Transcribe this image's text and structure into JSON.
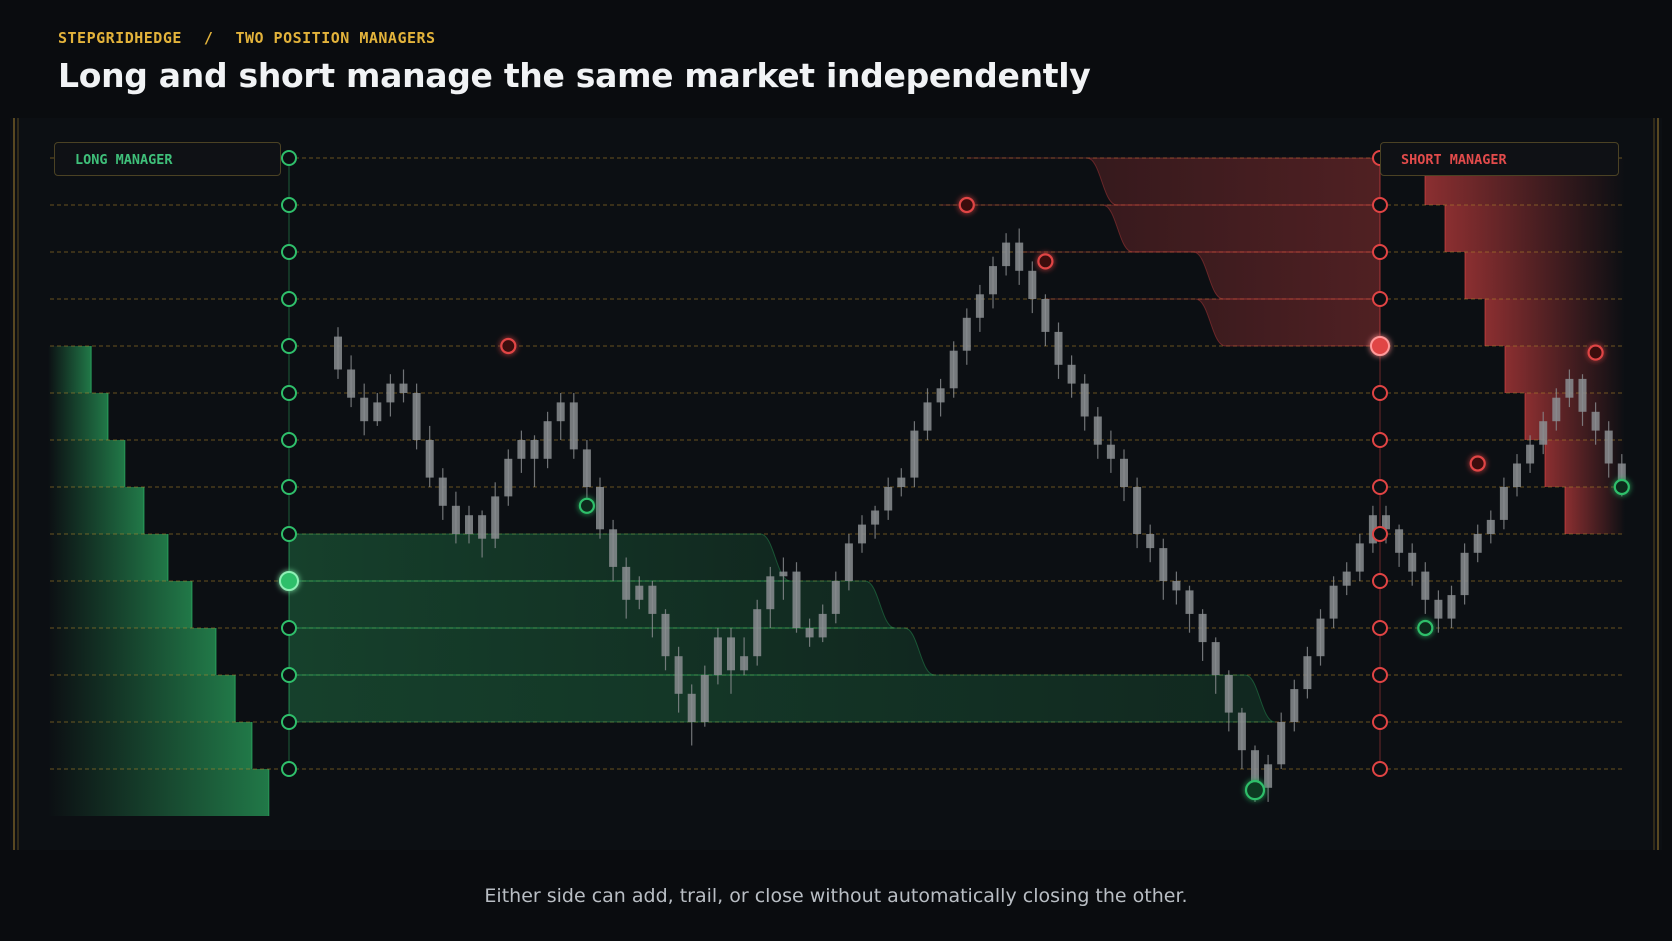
{
  "header": {
    "breadcrumb": [
      "STEPGRIDHEDGE",
      "/",
      "TWO POSITION MANAGERS"
    ],
    "title": "Long and short manage the same market independently"
  },
  "managers": {
    "long": {
      "label": "LONG MANAGER",
      "color": "#2fbf6b"
    },
    "short": {
      "label": "SHORT MANAGER",
      "color": "#e04444"
    }
  },
  "caption": "Either side can add, trail, or close without automatically closing the other.",
  "colors": {
    "background": "#0a0c0f",
    "accent": "#e3b33b",
    "gridline": "#b58a2a",
    "candle": "#8a8d90",
    "long": "#2fbf6b",
    "short": "#e04444"
  },
  "chart_data": {
    "type": "diagram",
    "grid_levels": 14,
    "active_long_level": 9,
    "active_short_level": 4,
    "long_ladder_depth": [
      0.18,
      0.25,
      0.32,
      0.4,
      0.5,
      0.6,
      0.7,
      0.78,
      0.85,
      0.92
    ],
    "short_ladder_depth": [
      0.9,
      0.8,
      0.7,
      0.6,
      0.5,
      0.4,
      0.3,
      0.2
    ],
    "candles": [
      [
        9.2,
        8.5,
        9.4,
        8.3
      ],
      [
        8.5,
        7.9,
        8.8,
        7.7
      ],
      [
        7.9,
        7.4,
        8.2,
        7.1
      ],
      [
        7.4,
        7.8,
        8.0,
        7.3
      ],
      [
        7.8,
        8.2,
        8.4,
        7.5
      ],
      [
        8.2,
        8.0,
        8.5,
        7.8
      ],
      [
        8.0,
        7.0,
        8.2,
        6.8
      ],
      [
        7.0,
        6.2,
        7.3,
        6.0
      ],
      [
        6.2,
        5.6,
        6.4,
        5.3
      ],
      [
        5.6,
        5.0,
        5.9,
        4.8
      ],
      [
        5.0,
        5.4,
        5.6,
        4.8
      ],
      [
        5.4,
        4.9,
        5.5,
        4.5
      ],
      [
        4.9,
        5.8,
        6.1,
        4.7
      ],
      [
        5.8,
        6.6,
        6.8,
        5.6
      ],
      [
        6.6,
        7.0,
        7.2,
        6.3
      ],
      [
        7.0,
        6.6,
        7.1,
        6.0
      ],
      [
        6.6,
        7.4,
        7.6,
        6.4
      ],
      [
        7.4,
        7.8,
        8.0,
        7.0
      ],
      [
        7.8,
        6.8,
        8.0,
        6.6
      ],
      [
        6.8,
        6.0,
        7.0,
        5.7
      ],
      [
        6.0,
        5.1,
        6.2,
        4.9
      ],
      [
        5.1,
        4.3,
        5.3,
        4.0
      ],
      [
        4.3,
        3.6,
        4.5,
        3.2
      ],
      [
        3.6,
        3.9,
        4.1,
        3.4
      ],
      [
        3.9,
        3.3,
        4.0,
        2.8
      ],
      [
        3.3,
        2.4,
        3.4,
        2.1
      ],
      [
        2.4,
        1.6,
        2.6,
        1.2
      ],
      [
        1.6,
        1.0,
        1.8,
        0.5
      ],
      [
        1.0,
        2.0,
        2.2,
        0.9
      ],
      [
        2.0,
        2.8,
        3.0,
        1.8
      ],
      [
        2.8,
        2.1,
        3.0,
        1.6
      ],
      [
        2.1,
        2.4,
        2.8,
        2.0
      ],
      [
        2.4,
        3.4,
        3.6,
        2.2
      ],
      [
        3.4,
        4.1,
        4.3,
        3.0
      ],
      [
        4.1,
        4.2,
        4.5,
        3.6
      ],
      [
        4.2,
        3.0,
        4.4,
        2.9
      ],
      [
        3.0,
        2.8,
        3.2,
        2.6
      ],
      [
        2.8,
        3.3,
        3.5,
        2.7
      ],
      [
        3.3,
        4.0,
        4.2,
        3.1
      ],
      [
        4.0,
        4.8,
        5.0,
        3.8
      ],
      [
        4.8,
        5.2,
        5.4,
        4.6
      ],
      [
        5.2,
        5.5,
        5.6,
        4.9
      ],
      [
        5.5,
        6.0,
        6.2,
        5.3
      ],
      [
        6.0,
        6.2,
        6.4,
        5.8
      ],
      [
        6.2,
        7.2,
        7.4,
        6.0
      ],
      [
        7.2,
        7.8,
        8.1,
        7.0
      ],
      [
        7.8,
        8.1,
        8.3,
        7.5
      ],
      [
        8.1,
        8.9,
        9.1,
        7.9
      ],
      [
        8.9,
        9.6,
        9.8,
        8.6
      ],
      [
        9.6,
        10.1,
        10.3,
        9.3
      ],
      [
        10.1,
        10.7,
        10.9,
        9.8
      ],
      [
        10.7,
        11.2,
        11.4,
        10.5
      ],
      [
        11.2,
        10.6,
        11.5,
        10.3
      ],
      [
        10.6,
        10.0,
        10.8,
        9.7
      ],
      [
        10.0,
        9.3,
        10.1,
        9.0
      ],
      [
        9.3,
        8.6,
        9.5,
        8.3
      ],
      [
        8.6,
        8.2,
        8.8,
        7.9
      ],
      [
        8.2,
        7.5,
        8.4,
        7.2
      ],
      [
        7.5,
        6.9,
        7.7,
        6.6
      ],
      [
        6.9,
        6.6,
        7.2,
        6.3
      ],
      [
        6.6,
        6.0,
        6.8,
        5.7
      ],
      [
        6.0,
        5.0,
        6.2,
        4.7
      ],
      [
        5.0,
        4.7,
        5.2,
        4.4
      ],
      [
        4.7,
        4.0,
        4.9,
        3.6
      ],
      [
        4.0,
        3.8,
        4.2,
        3.5
      ],
      [
        3.8,
        3.3,
        3.9,
        2.9
      ],
      [
        3.3,
        2.7,
        3.4,
        2.3
      ],
      [
        2.7,
        2.0,
        2.8,
        1.6
      ],
      [
        2.0,
        1.2,
        2.1,
        0.8
      ],
      [
        1.2,
        0.4,
        1.3,
        0.0
      ],
      [
        0.4,
        -0.4,
        0.5,
        -0.7
      ],
      [
        -0.4,
        0.1,
        0.3,
        -0.7
      ],
      [
        0.1,
        1.0,
        1.2,
        0.0
      ],
      [
        1.0,
        1.7,
        1.9,
        0.8
      ],
      [
        1.7,
        2.4,
        2.6,
        1.5
      ],
      [
        2.4,
        3.2,
        3.4,
        2.2
      ],
      [
        3.2,
        3.9,
        4.1,
        3.0
      ],
      [
        3.9,
        4.2,
        4.4,
        3.7
      ],
      [
        4.2,
        4.8,
        5.0,
        4.0
      ],
      [
        4.8,
        5.4,
        5.6,
        4.6
      ],
      [
        5.4,
        5.1,
        5.6,
        4.8
      ],
      [
        5.1,
        4.6,
        5.2,
        4.3
      ],
      [
        4.6,
        4.2,
        4.8,
        3.9
      ],
      [
        4.2,
        3.6,
        4.4,
        3.3
      ],
      [
        3.6,
        3.2,
        3.8,
        2.9
      ],
      [
        3.2,
        3.7,
        3.9,
        3.0
      ],
      [
        3.7,
        4.6,
        4.8,
        3.5
      ],
      [
        4.6,
        5.0,
        5.2,
        4.4
      ],
      [
        5.0,
        5.3,
        5.5,
        4.8
      ],
      [
        5.3,
        6.0,
        6.2,
        5.1
      ],
      [
        6.0,
        6.5,
        6.7,
        5.8
      ],
      [
        6.5,
        6.9,
        7.1,
        6.3
      ],
      [
        6.9,
        7.4,
        7.6,
        6.7
      ],
      [
        7.4,
        7.9,
        8.1,
        7.2
      ],
      [
        7.9,
        8.3,
        8.5,
        7.7
      ],
      [
        8.3,
        7.6,
        8.4,
        7.3
      ],
      [
        7.6,
        7.2,
        7.8,
        6.9
      ],
      [
        7.2,
        6.5,
        7.4,
        6.2
      ],
      [
        6.5,
        6.1,
        6.7,
        5.8
      ]
    ],
    "short_entries": [
      [
        13,
        9.0
      ],
      [
        48,
        12.0
      ],
      [
        54,
        10.8
      ],
      [
        87,
        6.5
      ],
      [
        96,
        8.86
      ]
    ],
    "long_entries": [
      [
        19,
        5.6
      ],
      [
        70,
        -0.45
      ],
      [
        83,
        3.0
      ],
      [
        98,
        6.0
      ]
    ],
    "long_trails": [
      {
        "top": 5,
        "bottom": 4,
        "from": 0,
        "step_at": 33
      },
      {
        "top": 4,
        "bottom": 3,
        "from": 31,
        "step_at": 41
      },
      {
        "top": 3,
        "bottom": 2,
        "from": 33,
        "step_at": 44
      },
      {
        "top": 2,
        "bottom": 1,
        "from": 37,
        "step_at": 70
      }
    ],
    "short_trails": [
      {
        "top": 13,
        "bottom": 12,
        "from": 48,
        "step_at": 36
      },
      {
        "top": 12,
        "bottom": 11,
        "from": 46,
        "step_at": 43
      },
      {
        "top": 11,
        "bottom": 10,
        "from": 52,
        "step_at": 45
      },
      {
        "top": 10,
        "bottom": 9,
        "from": 54,
        "step_at": 41
      }
    ]
  }
}
